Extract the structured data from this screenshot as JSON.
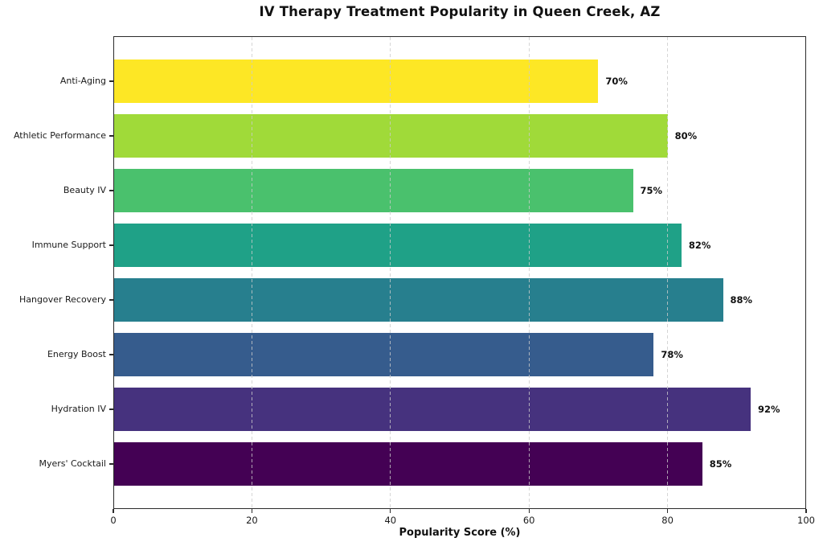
{
  "chart_data": {
    "type": "bar",
    "orientation": "horizontal",
    "title": "IV Therapy Treatment Popularity in Queen Creek, AZ",
    "xlabel": "Popularity Score (%)",
    "ylabel": "",
    "categories": [
      "Anti-Aging",
      "Athletic Performance",
      "Beauty IV",
      "Immune Support",
      "Hangover Recovery",
      "Energy Boost",
      "Hydration IV",
      "Myers' Cocktail"
    ],
    "values": [
      70,
      80,
      75,
      82,
      88,
      78,
      92,
      85
    ],
    "value_labels": [
      "70%",
      "80%",
      "75%",
      "82%",
      "88%",
      "78%",
      "92%",
      "85%"
    ],
    "colors": [
      "#FDE725",
      "#A0DA39",
      "#4AC16D",
      "#1FA187",
      "#277F8E",
      "#365C8D",
      "#46327E",
      "#440154"
    ],
    "xlim": [
      0,
      100
    ],
    "xticks": [
      0,
      20,
      40,
      60,
      80,
      100
    ],
    "xtick_labels": [
      "0",
      "20",
      "40",
      "60",
      "80",
      "100"
    ],
    "grid": true,
    "gridlines": [
      20,
      40,
      60,
      80
    ],
    "legend": "none",
    "theme": {
      "background": "#ffffff",
      "spine_color": "#2b2b2b",
      "grid_color": "#cbcbcb",
      "text_color": "#111111"
    }
  }
}
